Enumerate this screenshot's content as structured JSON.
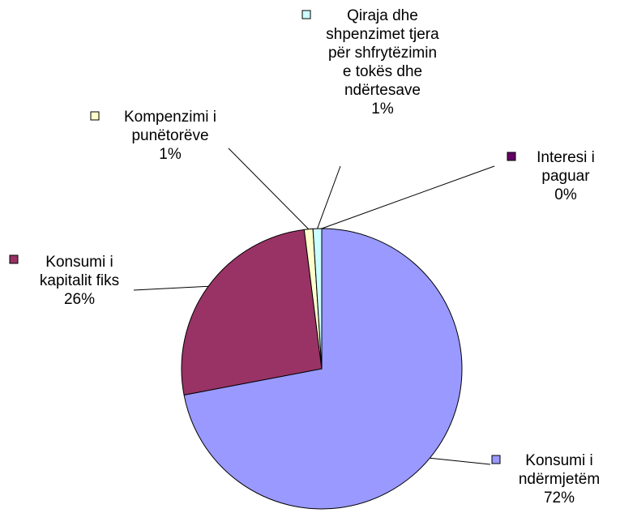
{
  "chart_data": {
    "type": "pie",
    "categories": [
      "Konsumi i ndërmjetëm",
      "Konsumi i kapitalit fiks",
      "Kompenzimi i punëtorëve",
      "Qiraja dhe shpenzimet tjera për shfrytëzimin e tokës dhe ndërtesave",
      "Interesi i paguar"
    ],
    "values": [
      72,
      26,
      1,
      1,
      0
    ],
    "value_labels": [
      "72%",
      "26%",
      "1%",
      "1%",
      "0%"
    ],
    "colors": [
      "#9999ff",
      "#993366",
      "#ffffcc",
      "#ccffff",
      "#660066"
    ]
  }
}
